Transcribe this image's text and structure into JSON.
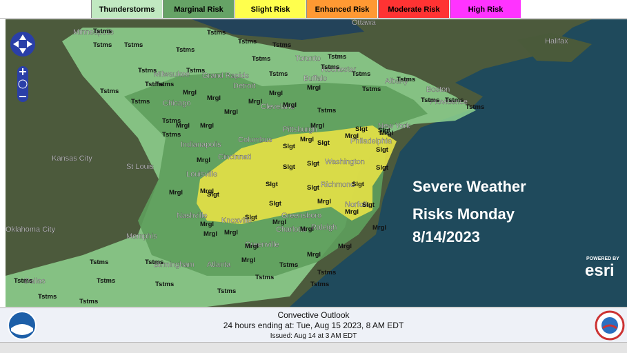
{
  "legend": [
    {
      "label": "Thunderstorms",
      "color": "#c1e9c1"
    },
    {
      "label": "Marginal Risk",
      "color": "#66a366"
    },
    {
      "label": "Slight Risk",
      "color": "#ffff4d"
    },
    {
      "label": "Enhanced Risk",
      "color": "#ff9933"
    },
    {
      "label": "Moderate Risk",
      "color": "#ff3333"
    },
    {
      "label": "High Risk",
      "color": "#ff33ff"
    }
  ],
  "cities": [
    "Minneapolis",
    "Ottawa",
    "Toronto",
    "Halifax",
    "Milwaukee",
    "Grand Rapids",
    "Detroit",
    "Chicago",
    "Cleveland",
    "Buffalo",
    "Rochester",
    "Albany",
    "Boston",
    "Providence",
    "New York",
    "Pittsburgh",
    "Philadelphia",
    "Columbus",
    "Indianapolis",
    "Cincinnati",
    "Washington",
    "Kansas City",
    "St Louis",
    "Louisville",
    "Richmond",
    "Norfolk",
    "Nashville",
    "Knoxville",
    "Greensboro",
    "Raleigh",
    "Charlotte",
    "Greenville",
    "Oklahoma City",
    "Memphis",
    "Birmingham",
    "Atlanta",
    "Dallas"
  ],
  "tstms_labels": [
    "Tstms",
    "Tstms",
    "Tstms",
    "Tstms",
    "Tstms",
    "Tstms",
    "Tstms",
    "Tstms",
    "Tstms",
    "Tstms",
    "Tstms",
    "Tstms",
    "Tstms",
    "Tstms",
    "Tstms",
    "Tstms",
    "Tstms",
    "Tstms",
    "Tstms",
    "Tstms",
    "Tstms",
    "Tstms",
    "Tstms",
    "Tstms",
    "Tstms",
    "Tstms",
    "Tstms",
    "Tstms",
    "Tstms",
    "Tstms",
    "Tstms",
    "Tstms",
    "Tstms",
    "Tstms",
    "Tstms",
    "Tstms",
    "Tstms",
    "Tstms"
  ],
  "mrgl_labels": [
    "Mrgl",
    "Mrgl",
    "Mrgl",
    "Mrgl",
    "Mrgl",
    "Mrgl",
    "Mrgl",
    "Mrgl",
    "Mrgl",
    "Mrgl",
    "Mrgl",
    "Mrgl",
    "Mrgl",
    "Mrgl",
    "Mrgl",
    "Mrgl",
    "Mrgl",
    "Mrgl",
    "Mrgl",
    "Mrgl",
    "Mrgl",
    "Mrgl",
    "Mrgl",
    "Mrgl",
    "Mrgl",
    "Mrgl",
    "Mrgl",
    "Mrgl"
  ],
  "slgt_labels": [
    "Slgt",
    "Slgt",
    "Slgt",
    "Slgt",
    "Slgt",
    "Slgt",
    "Slgt",
    "Slgt",
    "Slgt",
    "Slgt",
    "Slgt",
    "Slgt",
    "Slgt",
    "Slgt",
    "Slgt"
  ],
  "overlay": [
    "Severe Weather",
    "Risks Monday",
    "8/14/2023"
  ],
  "esri": {
    "powered_by": "POWERED BY",
    "logo": "esri"
  },
  "footer": {
    "title": "Convective Outlook",
    "valid": "24 hours ending at: Tue, Aug 15 2023,   8 AM EDT",
    "issued": "Issued: Aug 14 at 3 AM EDT"
  }
}
